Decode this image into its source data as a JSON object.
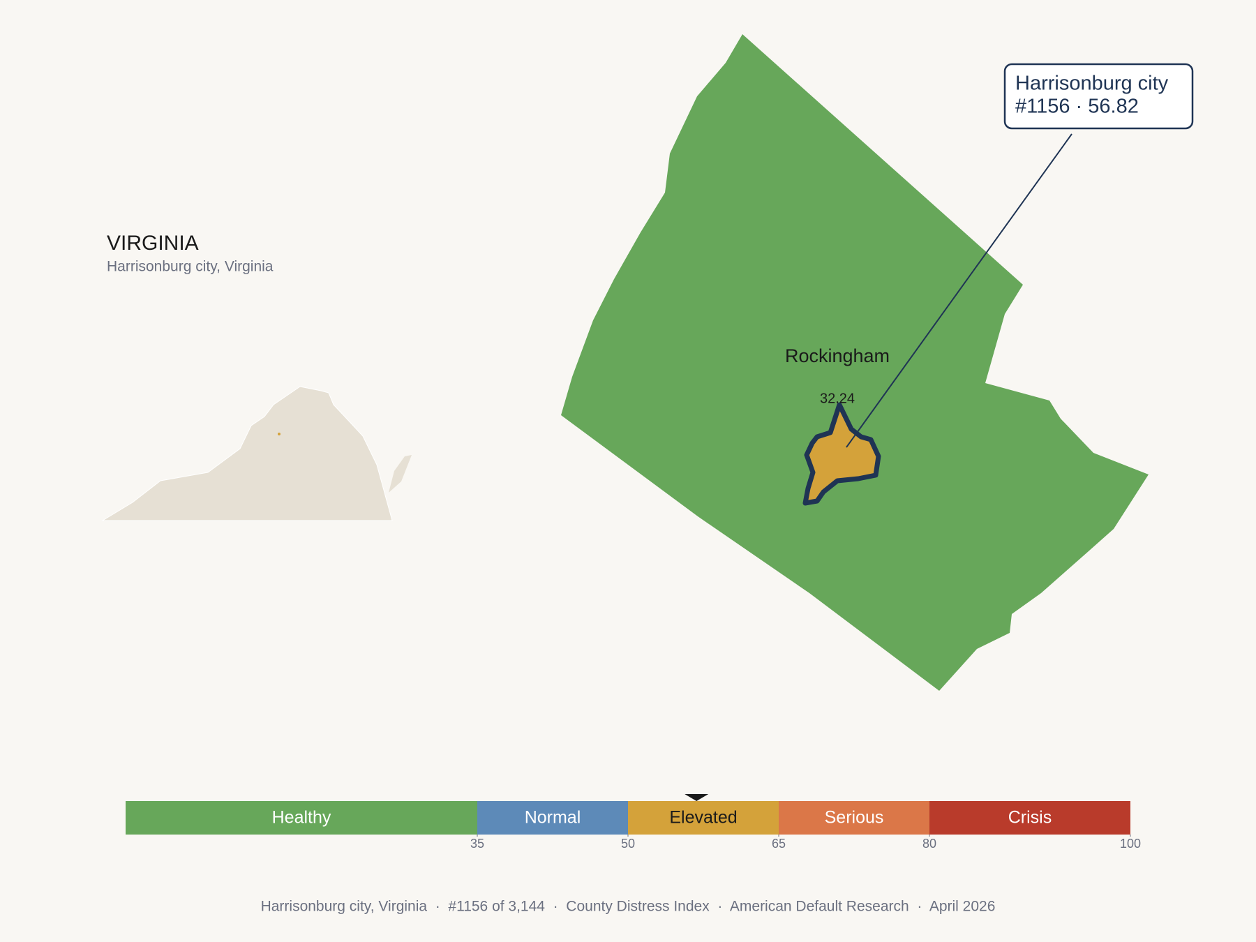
{
  "header": {
    "title": "VIRGINIA",
    "subtitle": "Harrisonburg city, Virginia"
  },
  "map": {
    "county_label": "Rockingham",
    "county_value_label": "32.24",
    "callout": {
      "line1": "Harrisonburg city",
      "line2": "#1156 · 56.82"
    }
  },
  "scale": {
    "lim": [
      0,
      100
    ],
    "ticks": [
      35,
      50,
      65,
      80,
      100
    ],
    "marker": 56.82,
    "bands": [
      {
        "label": "Healthy",
        "color": "#67a75a",
        "text_color": "#ffffff"
      },
      {
        "label": "Normal",
        "color": "#5d8ab8",
        "text_color": "#ffffff"
      },
      {
        "label": "Elevated",
        "color": "#d4a23a",
        "text_color": "#1a1a1a"
      },
      {
        "label": "Serious",
        "color": "#db7748",
        "text_color": "#ffffff"
      },
      {
        "label": "Crisis",
        "color": "#b93b2b",
        "text_color": "#ffffff"
      }
    ]
  },
  "footer": "Harrisonburg city, Virginia  ·  #1156 of 3,144  ·  County Distress Index  ·  American Default Research  ·  April 2026"
}
